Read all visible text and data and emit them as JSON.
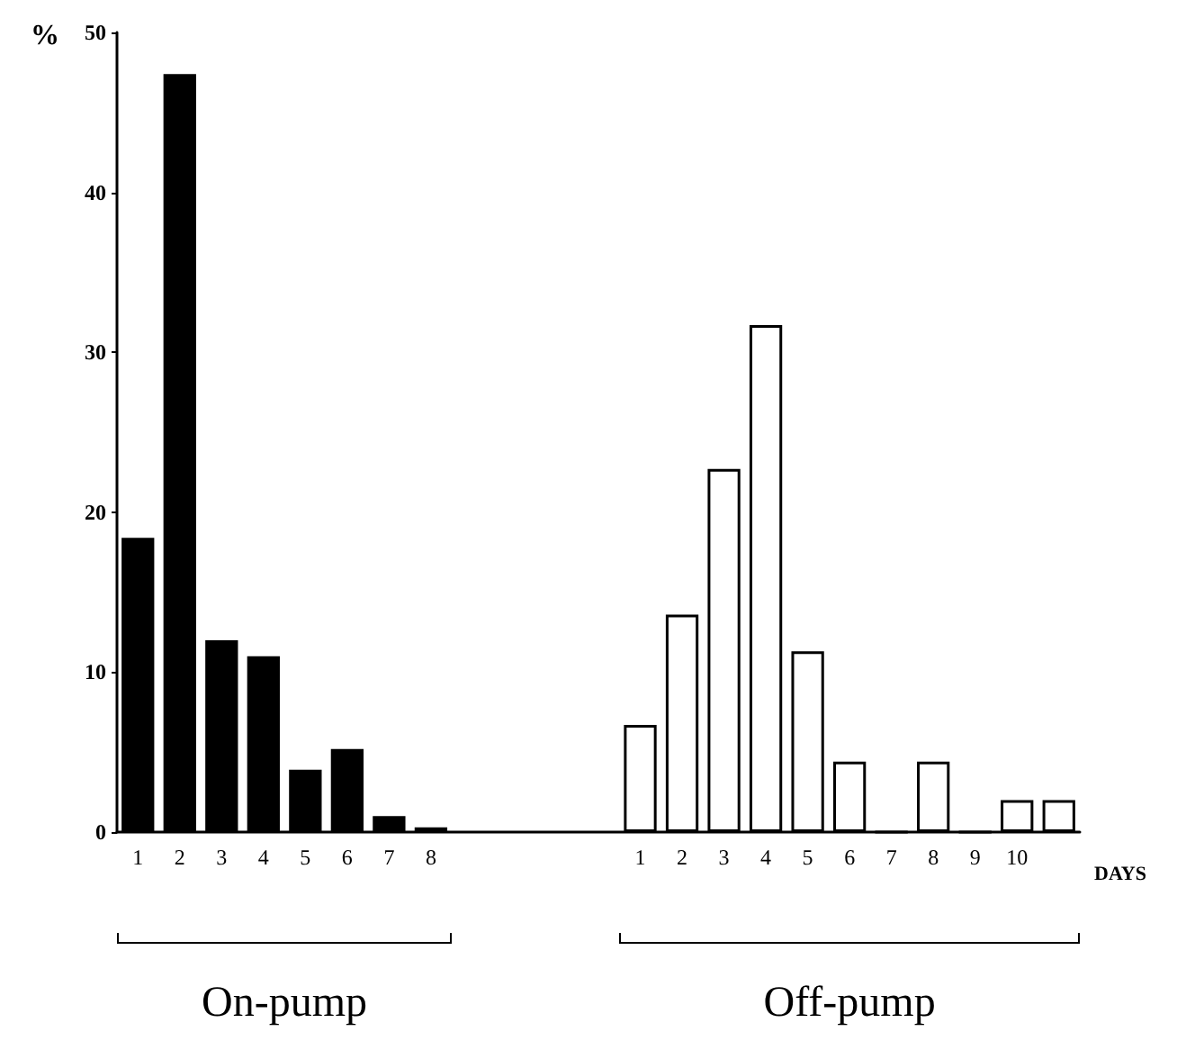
{
  "chart_data": {
    "type": "bar",
    "ylabel": "%",
    "xlabel": "DAYS",
    "annotations": [
      "On-pump",
      "Off-pump"
    ],
    "categories": [
      "1",
      "2",
      "3",
      "4",
      "5",
      "6",
      "7",
      "8",
      null,
      null,
      null,
      null,
      "1",
      "2",
      "3",
      "4",
      "5",
      "6",
      "7",
      "8",
      "9",
      "10",
      null
    ],
    "series": [
      {
        "color": "#000000",
        "values": [
          18.4,
          47.4,
          12.0,
          11.0,
          3.9,
          5.2,
          1.0,
          0.3,
          null,
          null,
          null,
          null,
          null,
          null,
          null,
          null,
          null,
          null,
          null,
          null,
          null,
          null,
          null
        ]
      },
      {
        "color": "#ffffff",
        "values": [
          null,
          null,
          null,
          null,
          null,
          null,
          null,
          null,
          null,
          null,
          null,
          null,
          6.7,
          13.6,
          22.7,
          31.7,
          11.3,
          4.4,
          0,
          4.4,
          0,
          2.0,
          2.0
        ]
      }
    ],
    "ylim": [
      0,
      50
    ],
    "yticks": [
      0,
      10,
      20,
      30,
      40,
      50
    ]
  }
}
